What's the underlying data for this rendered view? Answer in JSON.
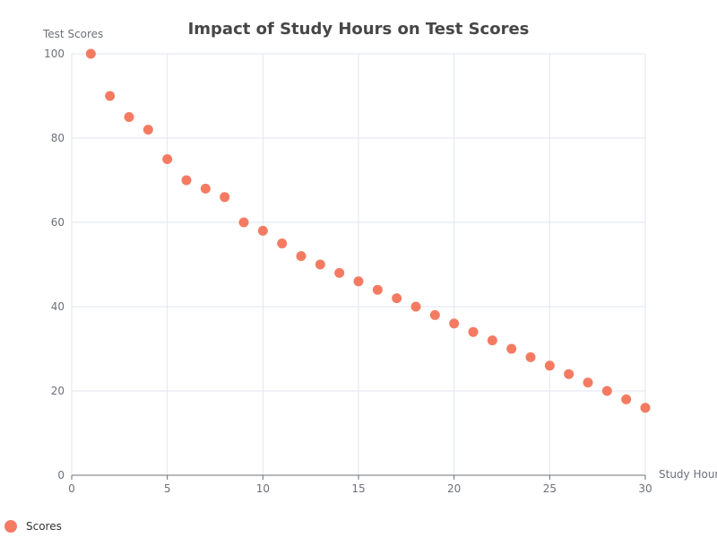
{
  "chart_data": {
    "type": "scatter",
    "title": "Impact of Study Hours on Test Scores",
    "xlabel": "Study Hours",
    "ylabel": "Test Scores",
    "xlim": [
      0,
      30
    ],
    "ylim": [
      0,
      100
    ],
    "x_ticks": [
      0,
      5,
      10,
      15,
      20,
      25,
      30
    ],
    "y_ticks": [
      0,
      20,
      40,
      60,
      80,
      100
    ],
    "grid": true,
    "legend_position": "bottom-left",
    "series": [
      {
        "name": "Scores",
        "color": "#f47b62",
        "x": [
          1,
          2,
          3,
          4,
          5,
          6,
          7,
          8,
          9,
          10,
          11,
          12,
          13,
          14,
          15,
          16,
          17,
          18,
          19,
          20,
          21,
          22,
          23,
          24,
          25,
          26,
          27,
          28,
          29,
          30
        ],
        "y": [
          100,
          90,
          85,
          82,
          75,
          70,
          68,
          66,
          60,
          58,
          55,
          52,
          50,
          48,
          46,
          44,
          42,
          40,
          38,
          36,
          34,
          32,
          30,
          28,
          26,
          24,
          22,
          20,
          18,
          16
        ]
      }
    ]
  }
}
